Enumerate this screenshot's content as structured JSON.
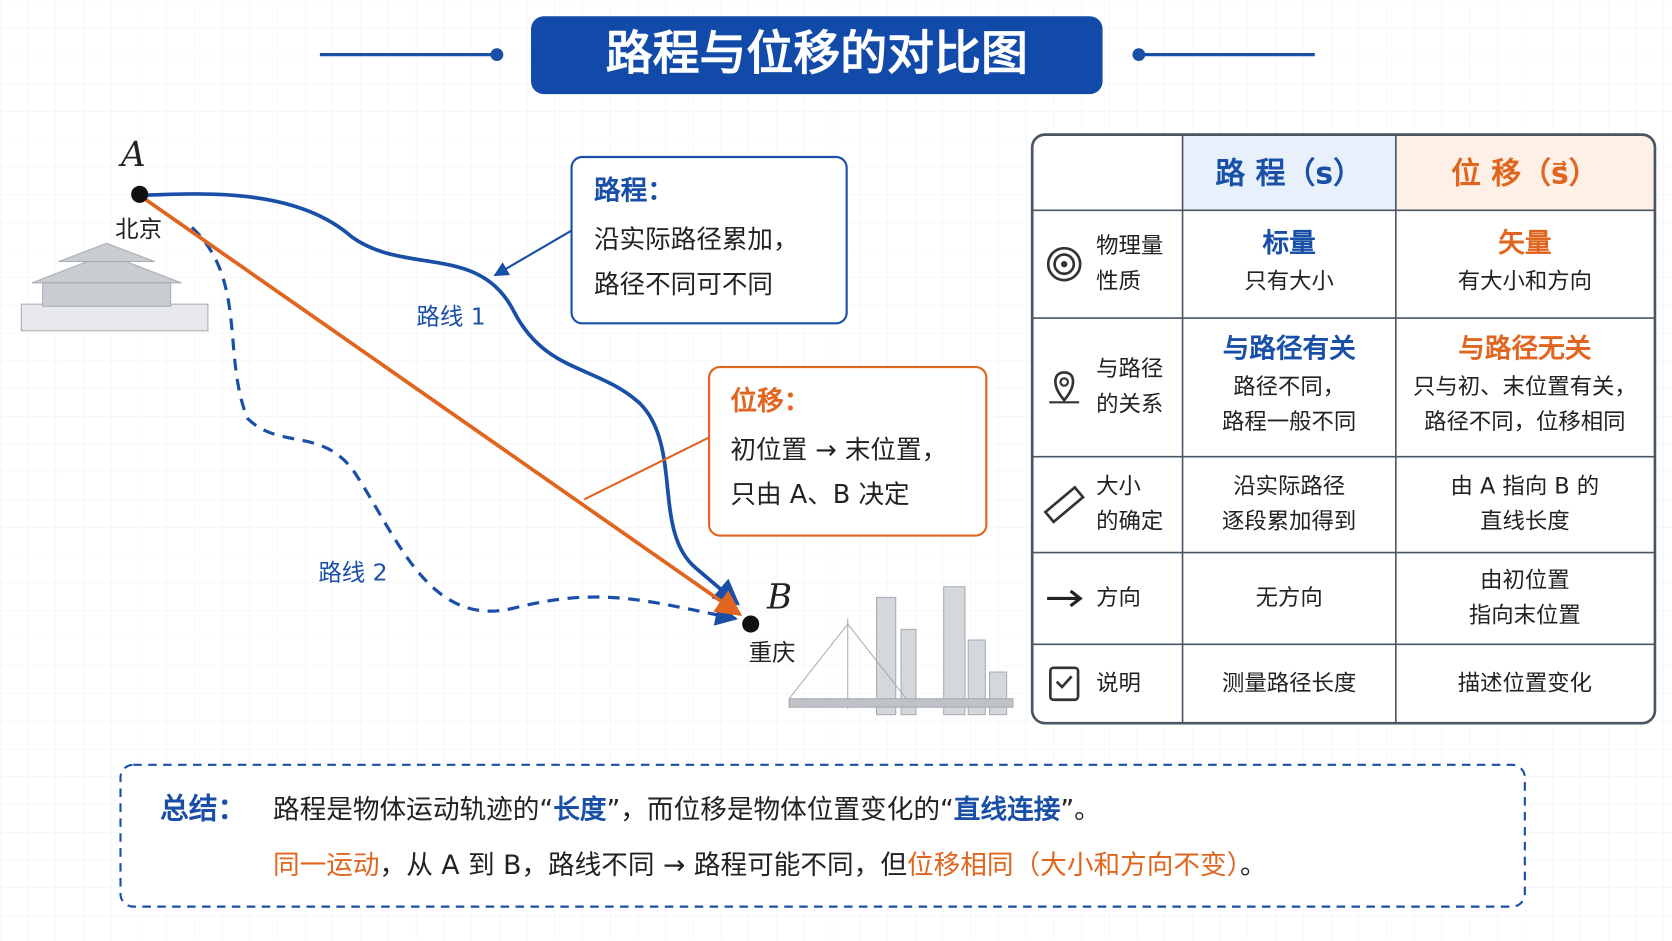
{
  "title": "路程与位移的对比图",
  "diagram": {
    "point_a": {
      "label": "A",
      "city": "北京"
    },
    "point_b": {
      "label": "B",
      "city": "重庆"
    },
    "route_1": "路线 1",
    "route_2": "路线 2",
    "distance_callout": {
      "heading": "路程：",
      "lines": [
        "沿实际路径累加，",
        "路径不同可不同"
      ]
    },
    "displacement_callout": {
      "heading": "位移：",
      "lines": [
        "初位置 → 末位置，",
        "只由 A、B 决定"
      ]
    }
  },
  "table": {
    "columns": [
      "路 程（s）",
      "位 移（s⃗）"
    ],
    "rows": [
      {
        "label": [
          "物理量",
          "性质"
        ],
        "distance": {
          "heading": "标量",
          "lines": [
            "只有大小"
          ]
        },
        "displacement": {
          "heading": "矢量",
          "lines": [
            "有大小和方向"
          ]
        }
      },
      {
        "label": [
          "与路径",
          "的关系"
        ],
        "distance": {
          "heading": "与路径有关",
          "lines": [
            "路径不同，",
            "路程一般不同"
          ]
        },
        "displacement": {
          "heading": "与路径无关",
          "lines": [
            "只与初、末位置有关，",
            "路径不同，位移相同"
          ]
        }
      },
      {
        "label": [
          "大小",
          "的确定"
        ],
        "distance": {
          "lines": [
            "沿实际路径",
            "逐段累加得到"
          ]
        },
        "displacement": {
          "lines": [
            "由 A 指向 B 的",
            "直线长度"
          ]
        }
      },
      {
        "label": [
          "方向"
        ],
        "distance": {
          "lines": [
            "无方向"
          ]
        },
        "displacement": {
          "lines": [
            "由初位置",
            "指向末位置"
          ]
        }
      },
      {
        "label": [
          "说明"
        ],
        "distance": {
          "lines": [
            "测量路径长度"
          ]
        },
        "displacement": {
          "lines": [
            "描述位置变化"
          ]
        }
      }
    ]
  },
  "summary": {
    "label": "总结：",
    "line_1": [
      "路程是物体运动轨迹的“",
      "长度",
      "”，而位移是物体位置变化的“",
      "直线连接",
      "”。"
    ],
    "line_2": [
      "同一运动",
      "，从 A 到 B，路线不同 → 路程可能不同，但",
      "位移相同（大小和方向不变）",
      "。"
    ]
  }
}
